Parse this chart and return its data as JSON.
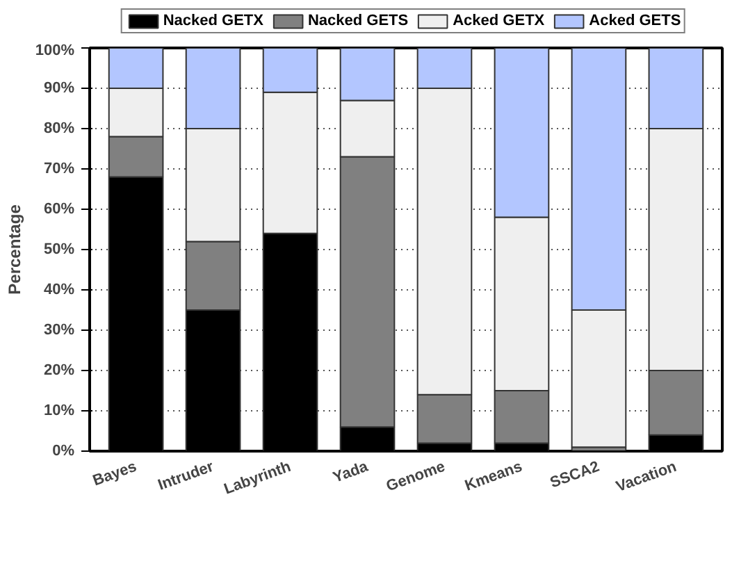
{
  "chart_data": {
    "type": "bar",
    "stacked": true,
    "ylabel": "Percentage",
    "categories": [
      "Bayes",
      "Intruder",
      "Labyrinth",
      "Yada",
      "Genome",
      "Kmeans",
      "SSCA2",
      "Vacation"
    ],
    "series": [
      {
        "name": "Nacked GETX",
        "color": "#000000",
        "values": [
          68,
          35,
          54,
          6,
          2,
          2,
          0,
          4
        ]
      },
      {
        "name": "Nacked GETS",
        "color": "#808080",
        "values": [
          10,
          17,
          0,
          67,
          12,
          13,
          1,
          16
        ]
      },
      {
        "name": "Acked GETX",
        "color": "#efefef",
        "values": [
          12,
          28,
          35,
          14,
          76,
          43,
          34,
          60
        ]
      },
      {
        "name": "Acked GETS",
        "color": "#b3c6ff",
        "values": [
          10,
          20,
          11,
          13,
          10,
          42,
          65,
          20
        ]
      }
    ],
    "ylim": [
      0,
      100
    ],
    "yticks": [
      {
        "value": 0,
        "label": "0%"
      },
      {
        "value": 10,
        "label": "10%"
      },
      {
        "value": 20,
        "label": "20%"
      },
      {
        "value": 30,
        "label": "30%"
      },
      {
        "value": 40,
        "label": "40%"
      },
      {
        "value": 50,
        "label": "50%"
      },
      {
        "value": 60,
        "label": "60%"
      },
      {
        "value": 70,
        "label": "70%"
      },
      {
        "value": 80,
        "label": "80%"
      },
      {
        "value": 90,
        "label": "90%"
      },
      {
        "value": 100,
        "label": "100%"
      }
    ],
    "grid": "y",
    "legend": "top"
  }
}
